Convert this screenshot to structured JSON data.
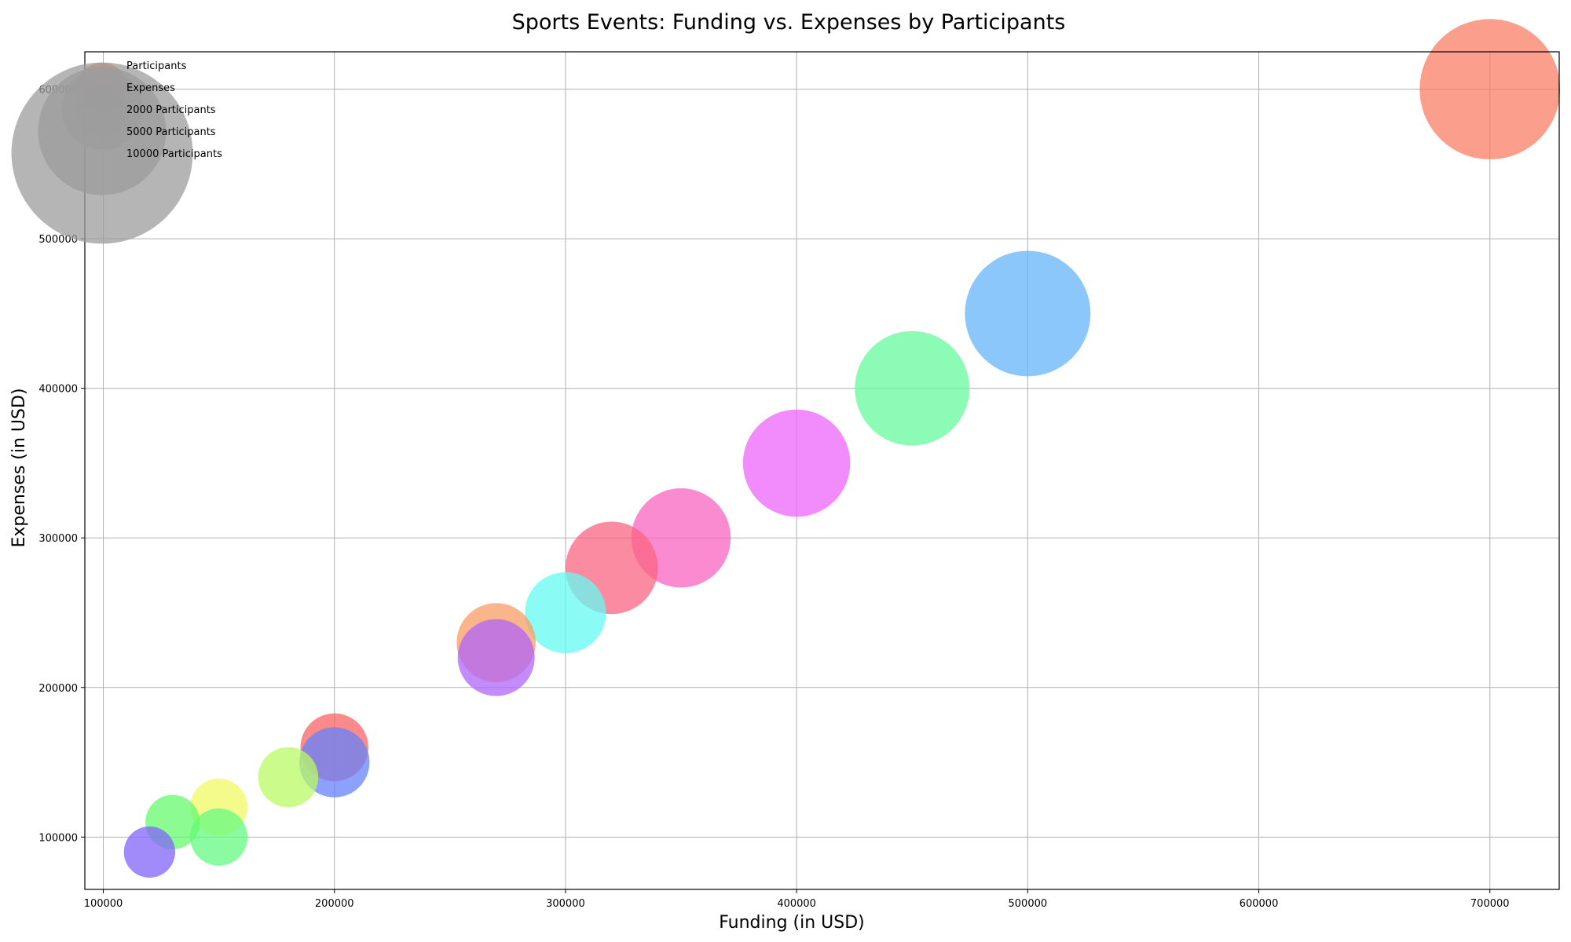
{
  "chart_data": {
    "type": "scatter",
    "title": "Sports Events: Funding vs. Expenses by Participants",
    "xlabel": "Funding (in USD)",
    "ylabel": "Expenses (in USD)",
    "xlim": [
      92000,
      730000
    ],
    "ylim": [
      65000,
      625000
    ],
    "xticks": [
      100000,
      200000,
      300000,
      400000,
      500000,
      600000,
      700000
    ],
    "yticks": [
      100000,
      200000,
      300000,
      400000,
      500000,
      600000
    ],
    "grid": true,
    "legend_position": "top-left",
    "legend": [
      {
        "label": "Participants",
        "type": "series",
        "color": "#fa7d64"
      },
      {
        "label": "Expenses",
        "type": "series",
        "color": "#9c9c9c"
      },
      {
        "label": "2000 Participants",
        "type": "size",
        "participants": 2000
      },
      {
        "label": "5000 Participants",
        "type": "size",
        "participants": 5000
      },
      {
        "label": "10000 Participants",
        "type": "size",
        "participants": 10000
      }
    ],
    "points": [
      {
        "funding": 700000,
        "expenses": 600000,
        "participants": 6000,
        "color": "#fa7d64"
      },
      {
        "funding": 500000,
        "expenses": 450000,
        "participants": 4800,
        "color": "#64b4fa"
      },
      {
        "funding": 450000,
        "expenses": 400000,
        "participants": 4000,
        "color": "#64fa9c"
      },
      {
        "funding": 400000,
        "expenses": 350000,
        "participants": 3500,
        "color": "#ee64fa"
      },
      {
        "funding": 350000,
        "expenses": 300000,
        "participants": 3000,
        "color": "#fa64c0"
      },
      {
        "funding": 320000,
        "expenses": 280000,
        "participants": 2600,
        "color": "#fa6482"
      },
      {
        "funding": 300000,
        "expenses": 250000,
        "participants": 2000,
        "color": "#64faf2"
      },
      {
        "funding": 270000,
        "expenses": 230000,
        "participants": 1900,
        "color": "#fa9c64"
      },
      {
        "funding": 270000,
        "expenses": 220000,
        "participants": 1800,
        "color": "#b064fa"
      },
      {
        "funding": 200000,
        "expenses": 160000,
        "participants": 1400,
        "color": "#fa6464"
      },
      {
        "funding": 200000,
        "expenses": 150000,
        "participants": 1500,
        "color": "#6482fa"
      },
      {
        "funding": 180000,
        "expenses": 140000,
        "participants": 1100,
        "color": "#bafa64"
      },
      {
        "funding": 150000,
        "expenses": 120000,
        "participants": 1000,
        "color": "#f2fa64"
      },
      {
        "funding": 150000,
        "expenses": 100000,
        "participants": 1000,
        "color": "#64fa82"
      },
      {
        "funding": 130000,
        "expenses": 110000,
        "participants": 900,
        "color": "#64fa6e"
      },
      {
        "funding": 120000,
        "expenses": 90000,
        "participants": 800,
        "color": "#8264fa"
      }
    ]
  }
}
